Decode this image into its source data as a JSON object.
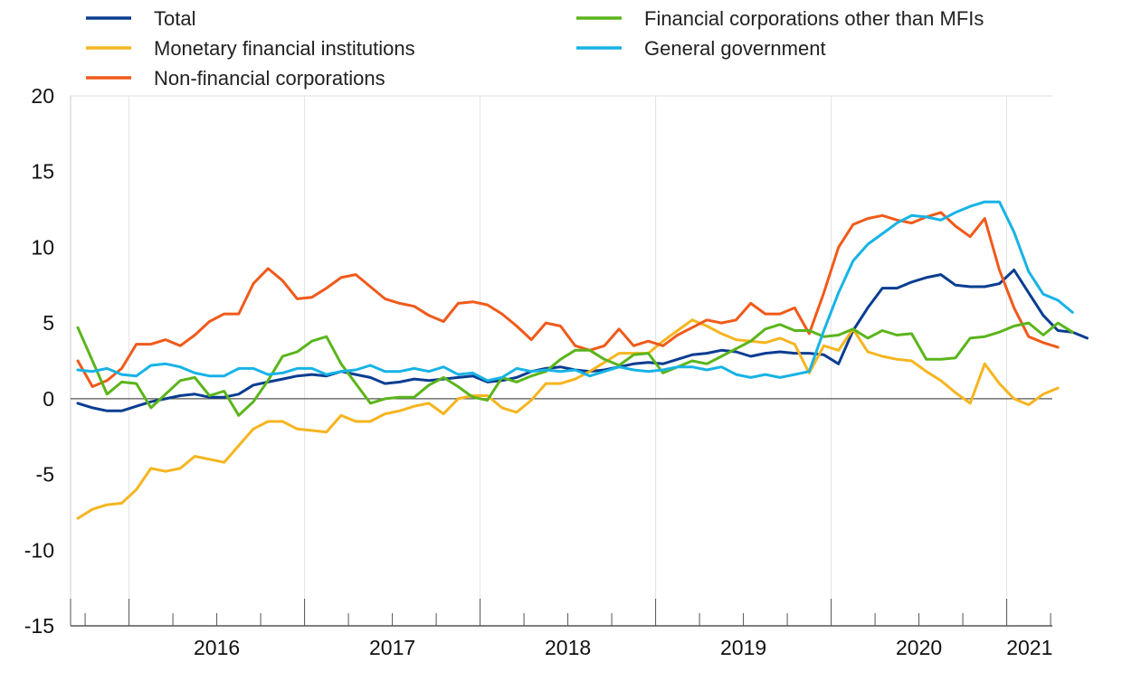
{
  "chart_data": {
    "type": "line",
    "title": "",
    "xlabel": "",
    "ylabel": "",
    "ylim": [
      -15,
      20
    ],
    "yticks": [
      -15,
      -10,
      -5,
      0,
      5,
      10,
      15,
      20
    ],
    "x_start": "2015-09",
    "x_end": "2021-03",
    "xtick_labels": [
      "2016",
      "2017",
      "2018",
      "2019",
      "2020",
      "2021"
    ],
    "grid": "vertical",
    "legend_position": "top",
    "series": [
      {
        "name": "Total",
        "color": "#0a3d91",
        "values": [
          -0.3,
          -0.6,
          -0.8,
          -0.8,
          -0.5,
          -0.2,
          0.0,
          0.2,
          0.3,
          0.1,
          0.1,
          0.3,
          0.9,
          1.1,
          1.3,
          1.5,
          1.6,
          1.5,
          1.8,
          1.6,
          1.4,
          1.0,
          1.1,
          1.3,
          1.2,
          1.3,
          1.4,
          1.5,
          1.1,
          1.2,
          1.4,
          1.8,
          2.0,
          2.1,
          1.9,
          1.8,
          1.9,
          2.1,
          2.3,
          2.4,
          2.3,
          2.6,
          2.9,
          3.0,
          3.2,
          3.1,
          2.8,
          3.0,
          3.1,
          3.0,
          3.0,
          2.9,
          2.3,
          4.5,
          6.0,
          7.3,
          7.3,
          7.7,
          8.0,
          8.2,
          7.5,
          7.4,
          7.4,
          7.6,
          8.5,
          7.0,
          5.5,
          4.5,
          4.4,
          4.0
        ]
      },
      {
        "name": "Monetary financial institutions",
        "color": "#f5b51f",
        "values": [
          -7.9,
          -7.3,
          -7.0,
          -6.9,
          -6.0,
          -4.6,
          -4.8,
          -4.6,
          -3.8,
          -4.0,
          -4.2,
          -3.1,
          -2.0,
          -1.5,
          -1.5,
          -2.0,
          -2.1,
          -2.2,
          -1.1,
          -1.5,
          -1.5,
          -1.0,
          -0.8,
          -0.5,
          -0.3,
          -1.0,
          0.0,
          0.2,
          0.2,
          -0.6,
          -0.9,
          -0.1,
          1.0,
          1.0,
          1.3,
          1.8,
          2.4,
          3.0,
          3.0,
          3.0,
          3.8,
          4.5,
          5.2,
          4.8,
          4.3,
          3.9,
          3.8,
          3.7,
          4.0,
          3.6,
          1.7,
          3.5,
          3.2,
          4.6,
          3.1,
          2.8,
          2.6,
          2.5,
          1.8,
          1.2,
          0.4,
          -0.3,
          2.3,
          1.0,
          0.0,
          -0.4,
          0.3,
          0.7
        ]
      },
      {
        "name": "Non-financial corporations",
        "color": "#f05a1a",
        "values": [
          2.5,
          0.8,
          1.2,
          2.0,
          3.6,
          3.6,
          3.9,
          3.5,
          4.2,
          5.1,
          5.6,
          5.6,
          7.6,
          8.6,
          7.8,
          6.6,
          6.7,
          7.3,
          8.0,
          8.2,
          7.4,
          6.6,
          6.3,
          6.1,
          5.5,
          5.1,
          6.3,
          6.4,
          6.2,
          5.6,
          4.8,
          3.9,
          5.0,
          4.8,
          3.5,
          3.2,
          3.5,
          4.6,
          3.5,
          3.8,
          3.5,
          4.2,
          4.7,
          5.2,
          5.0,
          5.2,
          6.3,
          5.6,
          5.6,
          6.0,
          4.3,
          7.0,
          10.0,
          11.5,
          11.9,
          12.1,
          11.8,
          11.6,
          12.0,
          12.3,
          11.4,
          10.7,
          11.9,
          8.5,
          6.0,
          4.1,
          3.7,
          3.4
        ]
      },
      {
        "name": "Financial corporations other than MFIs",
        "color": "#5bb51b",
        "values": [
          4.7,
          2.5,
          0.3,
          1.1,
          1.0,
          -0.6,
          0.3,
          1.2,
          1.4,
          0.2,
          0.5,
          -1.1,
          -0.2,
          1.2,
          2.8,
          3.1,
          3.8,
          4.1,
          2.3,
          1.0,
          -0.3,
          0.0,
          0.1,
          0.1,
          0.9,
          1.4,
          0.8,
          0.1,
          -0.1,
          1.4,
          1.1,
          1.5,
          1.8,
          2.6,
          3.2,
          3.2,
          2.6,
          2.2,
          2.9,
          3.0,
          1.7,
          2.1,
          2.5,
          2.3,
          2.8,
          3.3,
          3.8,
          4.6,
          4.9,
          4.5,
          4.5,
          4.1,
          4.2,
          4.6,
          4.0,
          4.5,
          4.2,
          4.3,
          2.6,
          2.6,
          2.7,
          4.0,
          4.1,
          4.4,
          4.8,
          5.0,
          4.2,
          5.0,
          4.4
        ]
      },
      {
        "name": "General government",
        "color": "#17b3e6",
        "values": [
          1.9,
          1.8,
          2.0,
          1.6,
          1.5,
          2.2,
          2.3,
          2.1,
          1.7,
          1.5,
          1.5,
          2.0,
          2.0,
          1.6,
          1.7,
          2.0,
          2.0,
          1.6,
          1.8,
          1.9,
          2.2,
          1.8,
          1.8,
          2.0,
          1.8,
          2.1,
          1.6,
          1.7,
          1.2,
          1.4,
          2.0,
          1.8,
          1.9,
          1.8,
          1.9,
          1.5,
          1.8,
          2.1,
          1.9,
          1.8,
          1.9,
          2.1,
          2.1,
          1.9,
          2.1,
          1.6,
          1.4,
          1.6,
          1.4,
          1.6,
          1.8,
          4.5,
          7.0,
          9.1,
          10.2,
          10.9,
          11.6,
          12.1,
          12.0,
          11.8,
          12.3,
          12.7,
          13.0,
          13.0,
          11.0,
          8.4,
          6.9,
          6.5,
          5.7
        ]
      }
    ]
  }
}
